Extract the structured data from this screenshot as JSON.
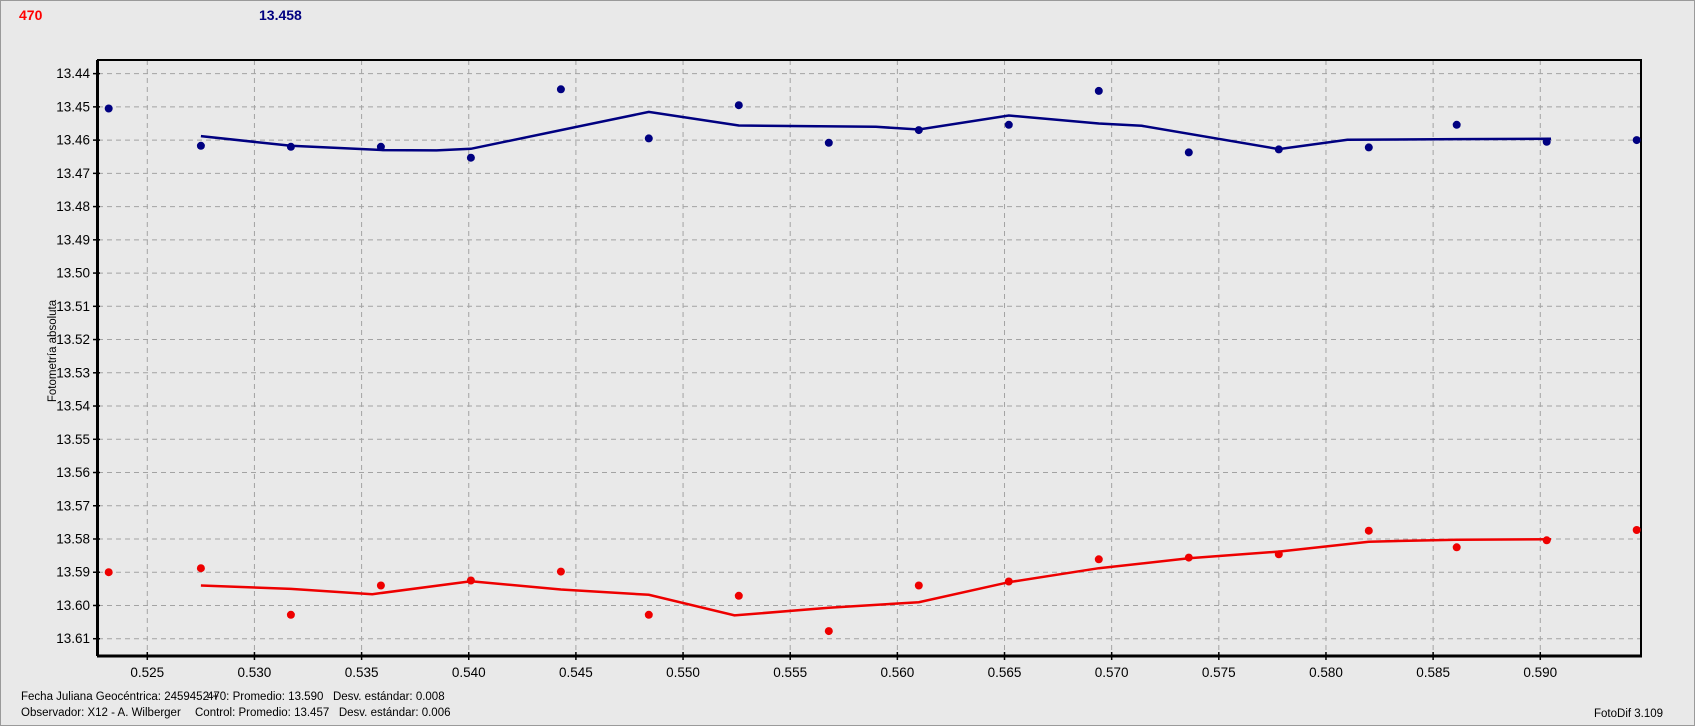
{
  "header": {
    "target_id": "470",
    "target_color": "#FF0000",
    "control_mag": "13.458",
    "control_color": "#000080"
  },
  "chart_data": {
    "type": "scatter",
    "title": "",
    "xlabel": "",
    "ylabel": "Fotometría absoluta",
    "y_axis_inverted": true,
    "grid": "dashed-gray",
    "legend_position": "none",
    "x_range": [
      0.5227,
      0.5947
    ],
    "y_range": [
      13.4359,
      13.6152
    ],
    "x_ticks": [
      "0.525",
      "0.530",
      "0.535",
      "0.540",
      "0.545",
      "0.550",
      "0.555",
      "0.560",
      "0.565",
      "0.570",
      "0.575",
      "0.580",
      "0.585",
      "0.590"
    ],
    "y_ticks": [
      "13.44",
      "13.45",
      "13.46",
      "13.47",
      "13.48",
      "13.49",
      "13.50",
      "13.51",
      "13.52",
      "13.53",
      "13.54",
      "13.55",
      "13.56",
      "13.57",
      "13.58",
      "13.59",
      "13.60",
      "13.61"
    ],
    "x": [
      0.5232,
      0.5275,
      0.5317,
      0.5359,
      0.5401,
      0.5443,
      0.5484,
      0.5526,
      0.5568,
      0.561,
      0.5652,
      0.5694,
      0.5736,
      0.5778,
      0.582,
      0.5861,
      0.5903,
      0.5945
    ],
    "series": [
      {
        "name": "470",
        "key": "470",
        "color": "#EE0000",
        "values": [
          13.59,
          13.5888,
          13.6028,
          13.594,
          13.5925,
          13.5898,
          13.6028,
          13.5971,
          13.6077,
          13.594,
          13.5928,
          13.5861,
          13.5856,
          13.5846,
          13.5775,
          13.5825,
          13.5804,
          13.5773
        ],
        "trend": [
          [
            0.5275,
            13.594
          ],
          [
            0.5317,
            13.595
          ],
          [
            0.5355,
            13.5966
          ],
          [
            0.5401,
            13.5927
          ],
          [
            0.5443,
            13.5952
          ],
          [
            0.5484,
            13.5968
          ],
          [
            0.5524,
            13.603
          ],
          [
            0.5568,
            13.6007
          ],
          [
            0.561,
            13.599
          ],
          [
            0.5652,
            13.593
          ],
          [
            0.5694,
            13.5888
          ],
          [
            0.5736,
            13.5858
          ],
          [
            0.5778,
            13.5838
          ],
          [
            0.582,
            13.5808
          ],
          [
            0.5861,
            13.5802
          ],
          [
            0.5905,
            13.5801
          ]
        ]
      },
      {
        "name": "Control",
        "key": "control",
        "color": "#000080",
        "values": [
          13.4505,
          13.4617,
          13.462,
          13.462,
          13.4653,
          13.4447,
          13.4595,
          13.4495,
          13.4608,
          13.457,
          13.4554,
          13.4452,
          13.4637,
          13.4628,
          13.4622,
          13.4554,
          13.4605,
          13.46
        ],
        "trend": [
          [
            0.5275,
            13.4588
          ],
          [
            0.5317,
            13.4617
          ],
          [
            0.536,
            13.463
          ],
          [
            0.5385,
            13.4631
          ],
          [
            0.5401,
            13.4626
          ],
          [
            0.5443,
            13.457
          ],
          [
            0.5484,
            13.4515
          ],
          [
            0.5526,
            13.4556
          ],
          [
            0.559,
            13.456
          ],
          [
            0.561,
            13.4568
          ],
          [
            0.5652,
            13.4526
          ],
          [
            0.5694,
            13.455
          ],
          [
            0.5714,
            13.4557
          ],
          [
            0.5778,
            13.4627
          ],
          [
            0.581,
            13.4599
          ],
          [
            0.5861,
            13.4597
          ],
          [
            0.5905,
            13.4596
          ]
        ]
      }
    ]
  },
  "footer": {
    "fecha_juliana": "Fecha Juliana Geocéntrica: 2459452 +",
    "observador": "Observador: X12 - A. Wilberger",
    "stats_470": "470: Promedio: 13.590   Desv. estándar: 0.008",
    "stats_control": "Control: Promedio: 13.457   Desv. estándar: 0.006",
    "app_version": "FotoDif 3.109"
  }
}
